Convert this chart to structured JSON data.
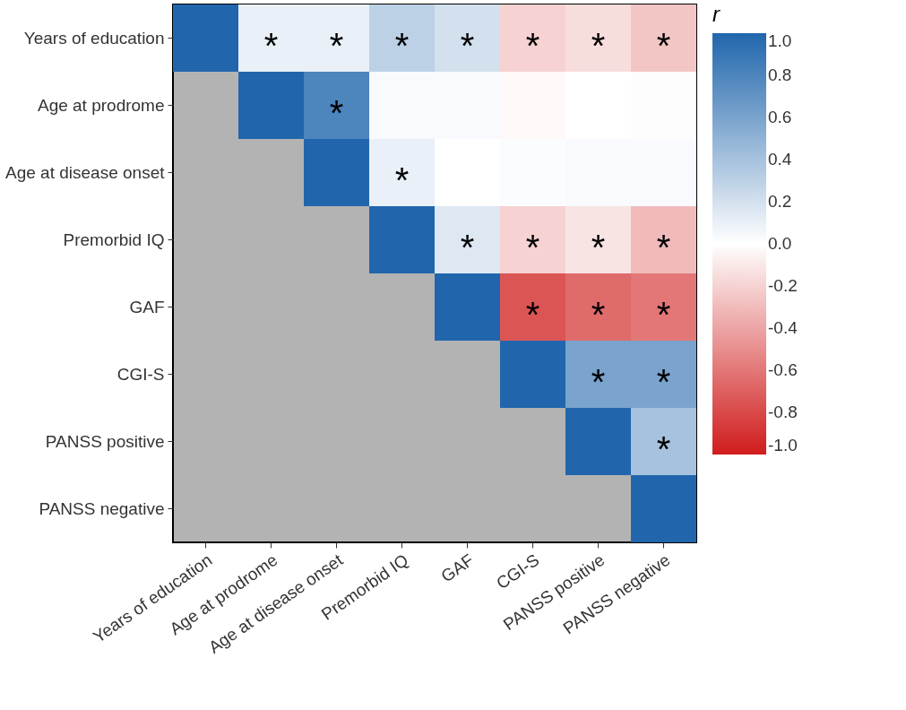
{
  "chart_data": {
    "type": "heatmap",
    "categories": [
      "Years of education",
      "Age at prodrome",
      "Age at disease onset",
      "Premorbid IQ",
      "GAF",
      "CGI-S",
      "PANSS positive",
      "PANSS negative"
    ],
    "y_categories": [
      "Years of education",
      "Age at prodrome",
      "Age at disease onset",
      "Premorbid IQ",
      "GAF",
      "CGI-S",
      "PANSS positive",
      "PANSS negative"
    ],
    "cells": [
      [
        1.0,
        0.1,
        0.1,
        0.3,
        0.2,
        -0.2,
        -0.15,
        -0.25
      ],
      [
        null,
        1.0,
        0.8,
        0.03,
        0.03,
        -0.03,
        0.0,
        0.01
      ],
      [
        null,
        null,
        1.0,
        0.1,
        0.0,
        0.02,
        0.03,
        0.03
      ],
      [
        null,
        null,
        null,
        1.0,
        0.15,
        -0.2,
        -0.12,
        -0.3
      ],
      [
        null,
        null,
        null,
        null,
        1.0,
        -0.75,
        -0.65,
        -0.6
      ],
      [
        null,
        null,
        null,
        null,
        null,
        1.0,
        0.6,
        0.6
      ],
      [
        null,
        null,
        null,
        null,
        null,
        null,
        1.0,
        0.4
      ],
      [
        null,
        null,
        null,
        null,
        null,
        null,
        null,
        1.0
      ]
    ],
    "cell_labels": [
      [
        null,
        "*",
        "*",
        "*",
        "*",
        "*",
        "*",
        "*"
      ],
      [
        null,
        null,
        "*",
        null,
        null,
        null,
        null,
        null
      ],
      [
        null,
        null,
        null,
        "*",
        null,
        null,
        null,
        null
      ],
      [
        null,
        null,
        null,
        null,
        "*",
        "*",
        "*",
        "*"
      ],
      [
        null,
        null,
        null,
        null,
        null,
        "*",
        "*",
        "*"
      ],
      [
        null,
        null,
        null,
        null,
        null,
        null,
        "*",
        "*"
      ],
      [
        null,
        null,
        null,
        null,
        null,
        null,
        null,
        "*"
      ],
      [
        null,
        null,
        null,
        null,
        null,
        null,
        null,
        null
      ]
    ],
    "clabel": "r",
    "clim": [
      -1,
      1
    ],
    "cticks": [
      {
        "value": 1,
        "label": "1.0"
      },
      0.8,
      0.6,
      0.4,
      0.2,
      {
        "value": 0,
        "label": "0.0"
      },
      -0.2,
      -0.4,
      -0.6,
      -0.8,
      {
        "value": -1,
        "label": "-1.0"
      }
    ]
  }
}
